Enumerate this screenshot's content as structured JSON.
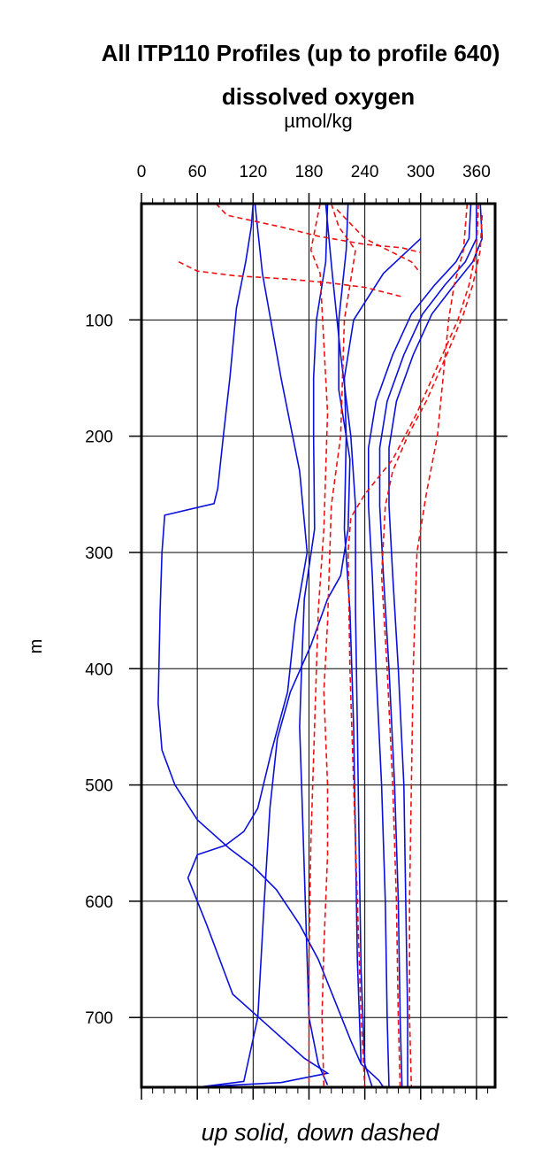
{
  "chart_data": {
    "type": "line",
    "title": "All ITP110 Profiles (up to profile 640)",
    "subtitle": "dissolved oxygen",
    "xunit": "µmol/kg",
    "ylabel": "m",
    "caption": "up solid, down dashed",
    "xlim": [
      0,
      380
    ],
    "ylim": [
      760,
      0
    ],
    "x_ticks": [
      0,
      60,
      120,
      180,
      240,
      300,
      360
    ],
    "y_ticks": [
      100,
      200,
      300,
      400,
      500,
      600,
      700
    ],
    "grid": true,
    "colors": {
      "up": "#0a10dc",
      "down": "#ee1111",
      "frame": "#000000"
    },
    "series": [
      {
        "type": "up",
        "points": [
          [
            120,
            0
          ],
          [
            118,
            20
          ],
          [
            112,
            50
          ],
          [
            102,
            90
          ],
          [
            95,
            150
          ],
          [
            88,
            200
          ],
          [
            82,
            245
          ],
          [
            78,
            258
          ],
          [
            25,
            268
          ],
          [
            22,
            300
          ],
          [
            20,
            350
          ],
          [
            18,
            430
          ],
          [
            22,
            470
          ],
          [
            36,
            500
          ],
          [
            60,
            530
          ],
          [
            95,
            555
          ],
          [
            120,
            570
          ],
          [
            145,
            590
          ],
          [
            170,
            620
          ],
          [
            190,
            650
          ],
          [
            205,
            680
          ],
          [
            215,
            700
          ],
          [
            225,
            720
          ],
          [
            236,
            740
          ],
          [
            255,
            754
          ],
          [
            260,
            760
          ]
        ]
      },
      {
        "type": "up",
        "points": [
          [
            122,
            0
          ],
          [
            130,
            60
          ],
          [
            150,
            150
          ],
          [
            170,
            230
          ],
          [
            178,
            300
          ],
          [
            165,
            360
          ],
          [
            157,
            420
          ],
          [
            140,
            470
          ],
          [
            125,
            520
          ],
          [
            110,
            540
          ],
          [
            90,
            552
          ],
          [
            60,
            560
          ],
          [
            50,
            580
          ],
          [
            70,
            620
          ],
          [
            98,
            680
          ],
          [
            140,
            710
          ],
          [
            175,
            735
          ],
          [
            200,
            748
          ],
          [
            150,
            756
          ],
          [
            55,
            760
          ]
        ]
      },
      {
        "type": "up",
        "points": [
          [
            200,
            0
          ],
          [
            198,
            50
          ],
          [
            188,
            100
          ],
          [
            185,
            150
          ],
          [
            185,
            200
          ],
          [
            186,
            280
          ],
          [
            175,
            340
          ],
          [
            172,
            400
          ],
          [
            170,
            450
          ],
          [
            172,
            500
          ],
          [
            176,
            600
          ],
          [
            180,
            700
          ],
          [
            190,
            740
          ],
          [
            200,
            758
          ]
        ]
      },
      {
        "type": "up",
        "points": [
          [
            222,
            0
          ],
          [
            220,
            40
          ],
          [
            212,
            100
          ],
          [
            212,
            160
          ],
          [
            224,
            220
          ],
          [
            222,
            280
          ],
          [
            214,
            320
          ],
          [
            200,
            340
          ],
          [
            182,
            380
          ],
          [
            160,
            420
          ],
          [
            146,
            460
          ],
          [
            138,
            520
          ],
          [
            132,
            600
          ],
          [
            125,
            700
          ],
          [
            110,
            755
          ],
          [
            60,
            760
          ]
        ]
      },
      {
        "type": "up",
        "points": [
          [
            198,
            0
          ],
          [
            205,
            60
          ],
          [
            214,
            130
          ],
          [
            225,
            200
          ],
          [
            230,
            260
          ],
          [
            230,
            350
          ],
          [
            232,
            450
          ],
          [
            234,
            560
          ],
          [
            236,
            660
          ],
          [
            240,
            740
          ],
          [
            248,
            760
          ]
        ]
      },
      {
        "type": "up",
        "points": [
          [
            300,
            30
          ],
          [
            260,
            60
          ],
          [
            228,
            100
          ],
          [
            218,
            150
          ],
          [
            220,
            200
          ],
          [
            218,
            280
          ],
          [
            224,
            350
          ],
          [
            228,
            450
          ],
          [
            230,
            550
          ],
          [
            232,
            650
          ],
          [
            236,
            740
          ]
        ]
      },
      {
        "type": "up",
        "points": [
          [
            354,
            0
          ],
          [
            352,
            30
          ],
          [
            338,
            50
          ],
          [
            315,
            70
          ],
          [
            290,
            95
          ],
          [
            270,
            130
          ],
          [
            252,
            170
          ],
          [
            244,
            210
          ],
          [
            244,
            260
          ],
          [
            248,
            320
          ],
          [
            252,
            400
          ],
          [
            258,
            500
          ],
          [
            262,
            600
          ],
          [
            264,
            700
          ],
          [
            266,
            760
          ]
        ]
      },
      {
        "type": "up",
        "points": [
          [
            360,
            0
          ],
          [
            360,
            30
          ],
          [
            348,
            50
          ],
          [
            326,
            70
          ],
          [
            302,
            95
          ],
          [
            282,
            130
          ],
          [
            264,
            170
          ],
          [
            256,
            210
          ],
          [
            256,
            260
          ],
          [
            260,
            320
          ],
          [
            266,
            400
          ],
          [
            272,
            500
          ],
          [
            276,
            600
          ],
          [
            278,
            700
          ],
          [
            280,
            760
          ]
        ]
      },
      {
        "type": "up",
        "points": [
          [
            364,
            0
          ],
          [
            366,
            30
          ],
          [
            356,
            50
          ],
          [
            336,
            70
          ],
          [
            312,
            95
          ],
          [
            292,
            130
          ],
          [
            274,
            170
          ],
          [
            266,
            210
          ],
          [
            266,
            260
          ],
          [
            270,
            320
          ],
          [
            276,
            400
          ],
          [
            282,
            500
          ],
          [
            284,
            600
          ],
          [
            286,
            700
          ],
          [
            286,
            760
          ]
        ]
      },
      {
        "type": "down",
        "points": [
          [
            80,
            0
          ],
          [
            92,
            10
          ],
          [
            150,
            20
          ],
          [
            190,
            28
          ],
          [
            240,
            35
          ],
          [
            280,
            38
          ],
          [
            300,
            42
          ]
        ]
      },
      {
        "type": "down",
        "points": [
          [
            40,
            50
          ],
          [
            60,
            58
          ],
          [
            100,
            62
          ],
          [
            160,
            65
          ],
          [
            200,
            68
          ],
          [
            240,
            72
          ],
          [
            280,
            80
          ]
        ]
      },
      {
        "type": "down",
        "points": [
          [
            192,
            0
          ],
          [
            182,
            40
          ],
          [
            192,
            60
          ],
          [
            200,
            180
          ],
          [
            196,
            280
          ],
          [
            190,
            350
          ],
          [
            186,
            450
          ],
          [
            182,
            550
          ],
          [
            180,
            650
          ],
          [
            180,
            760
          ]
        ]
      },
      {
        "type": "down",
        "points": [
          [
            210,
            5
          ],
          [
            240,
            30
          ],
          [
            290,
            50
          ],
          [
            300,
            60
          ]
        ]
      },
      {
        "type": "down",
        "points": [
          [
            350,
            0
          ],
          [
            346,
            40
          ],
          [
            336,
            70
          ],
          [
            330,
            100
          ],
          [
            324,
            150
          ],
          [
            318,
            200
          ],
          [
            306,
            250
          ],
          [
            296,
            300
          ],
          [
            292,
            400
          ],
          [
            290,
            500
          ],
          [
            288,
            600
          ],
          [
            288,
            700
          ],
          [
            290,
            760
          ]
        ]
      },
      {
        "type": "down",
        "points": [
          [
            362,
            0
          ],
          [
            360,
            40
          ],
          [
            352,
            70
          ],
          [
            340,
            100
          ],
          [
            318,
            140
          ],
          [
            296,
            180
          ],
          [
            270,
            220
          ],
          [
            240,
            250
          ],
          [
            225,
            270
          ],
          [
            222,
            300
          ],
          [
            224,
            400
          ],
          [
            228,
            500
          ],
          [
            232,
            600
          ],
          [
            236,
            700
          ],
          [
            240,
            760
          ]
        ]
      },
      {
        "type": "down",
        "points": [
          [
            366,
            10
          ],
          [
            364,
            40
          ],
          [
            356,
            70
          ],
          [
            346,
            95
          ],
          [
            328,
            130
          ],
          [
            306,
            170
          ],
          [
            286,
            200
          ],
          [
            270,
            230
          ],
          [
            262,
            260
          ],
          [
            258,
            320
          ],
          [
            264,
            400
          ],
          [
            270,
            500
          ],
          [
            274,
            600
          ],
          [
            276,
            700
          ],
          [
            278,
            760
          ]
        ]
      },
      {
        "type": "down",
        "points": [
          [
            204,
            0
          ],
          [
            212,
            20
          ],
          [
            230,
            40
          ],
          [
            218,
            100
          ],
          [
            214,
            200
          ],
          [
            204,
            260
          ],
          [
            200,
            360
          ],
          [
            196,
            420
          ],
          [
            200,
            500
          ],
          [
            200,
            560
          ],
          [
            196,
            640
          ],
          [
            194,
            700
          ],
          [
            196,
            760
          ]
        ]
      }
    ]
  }
}
